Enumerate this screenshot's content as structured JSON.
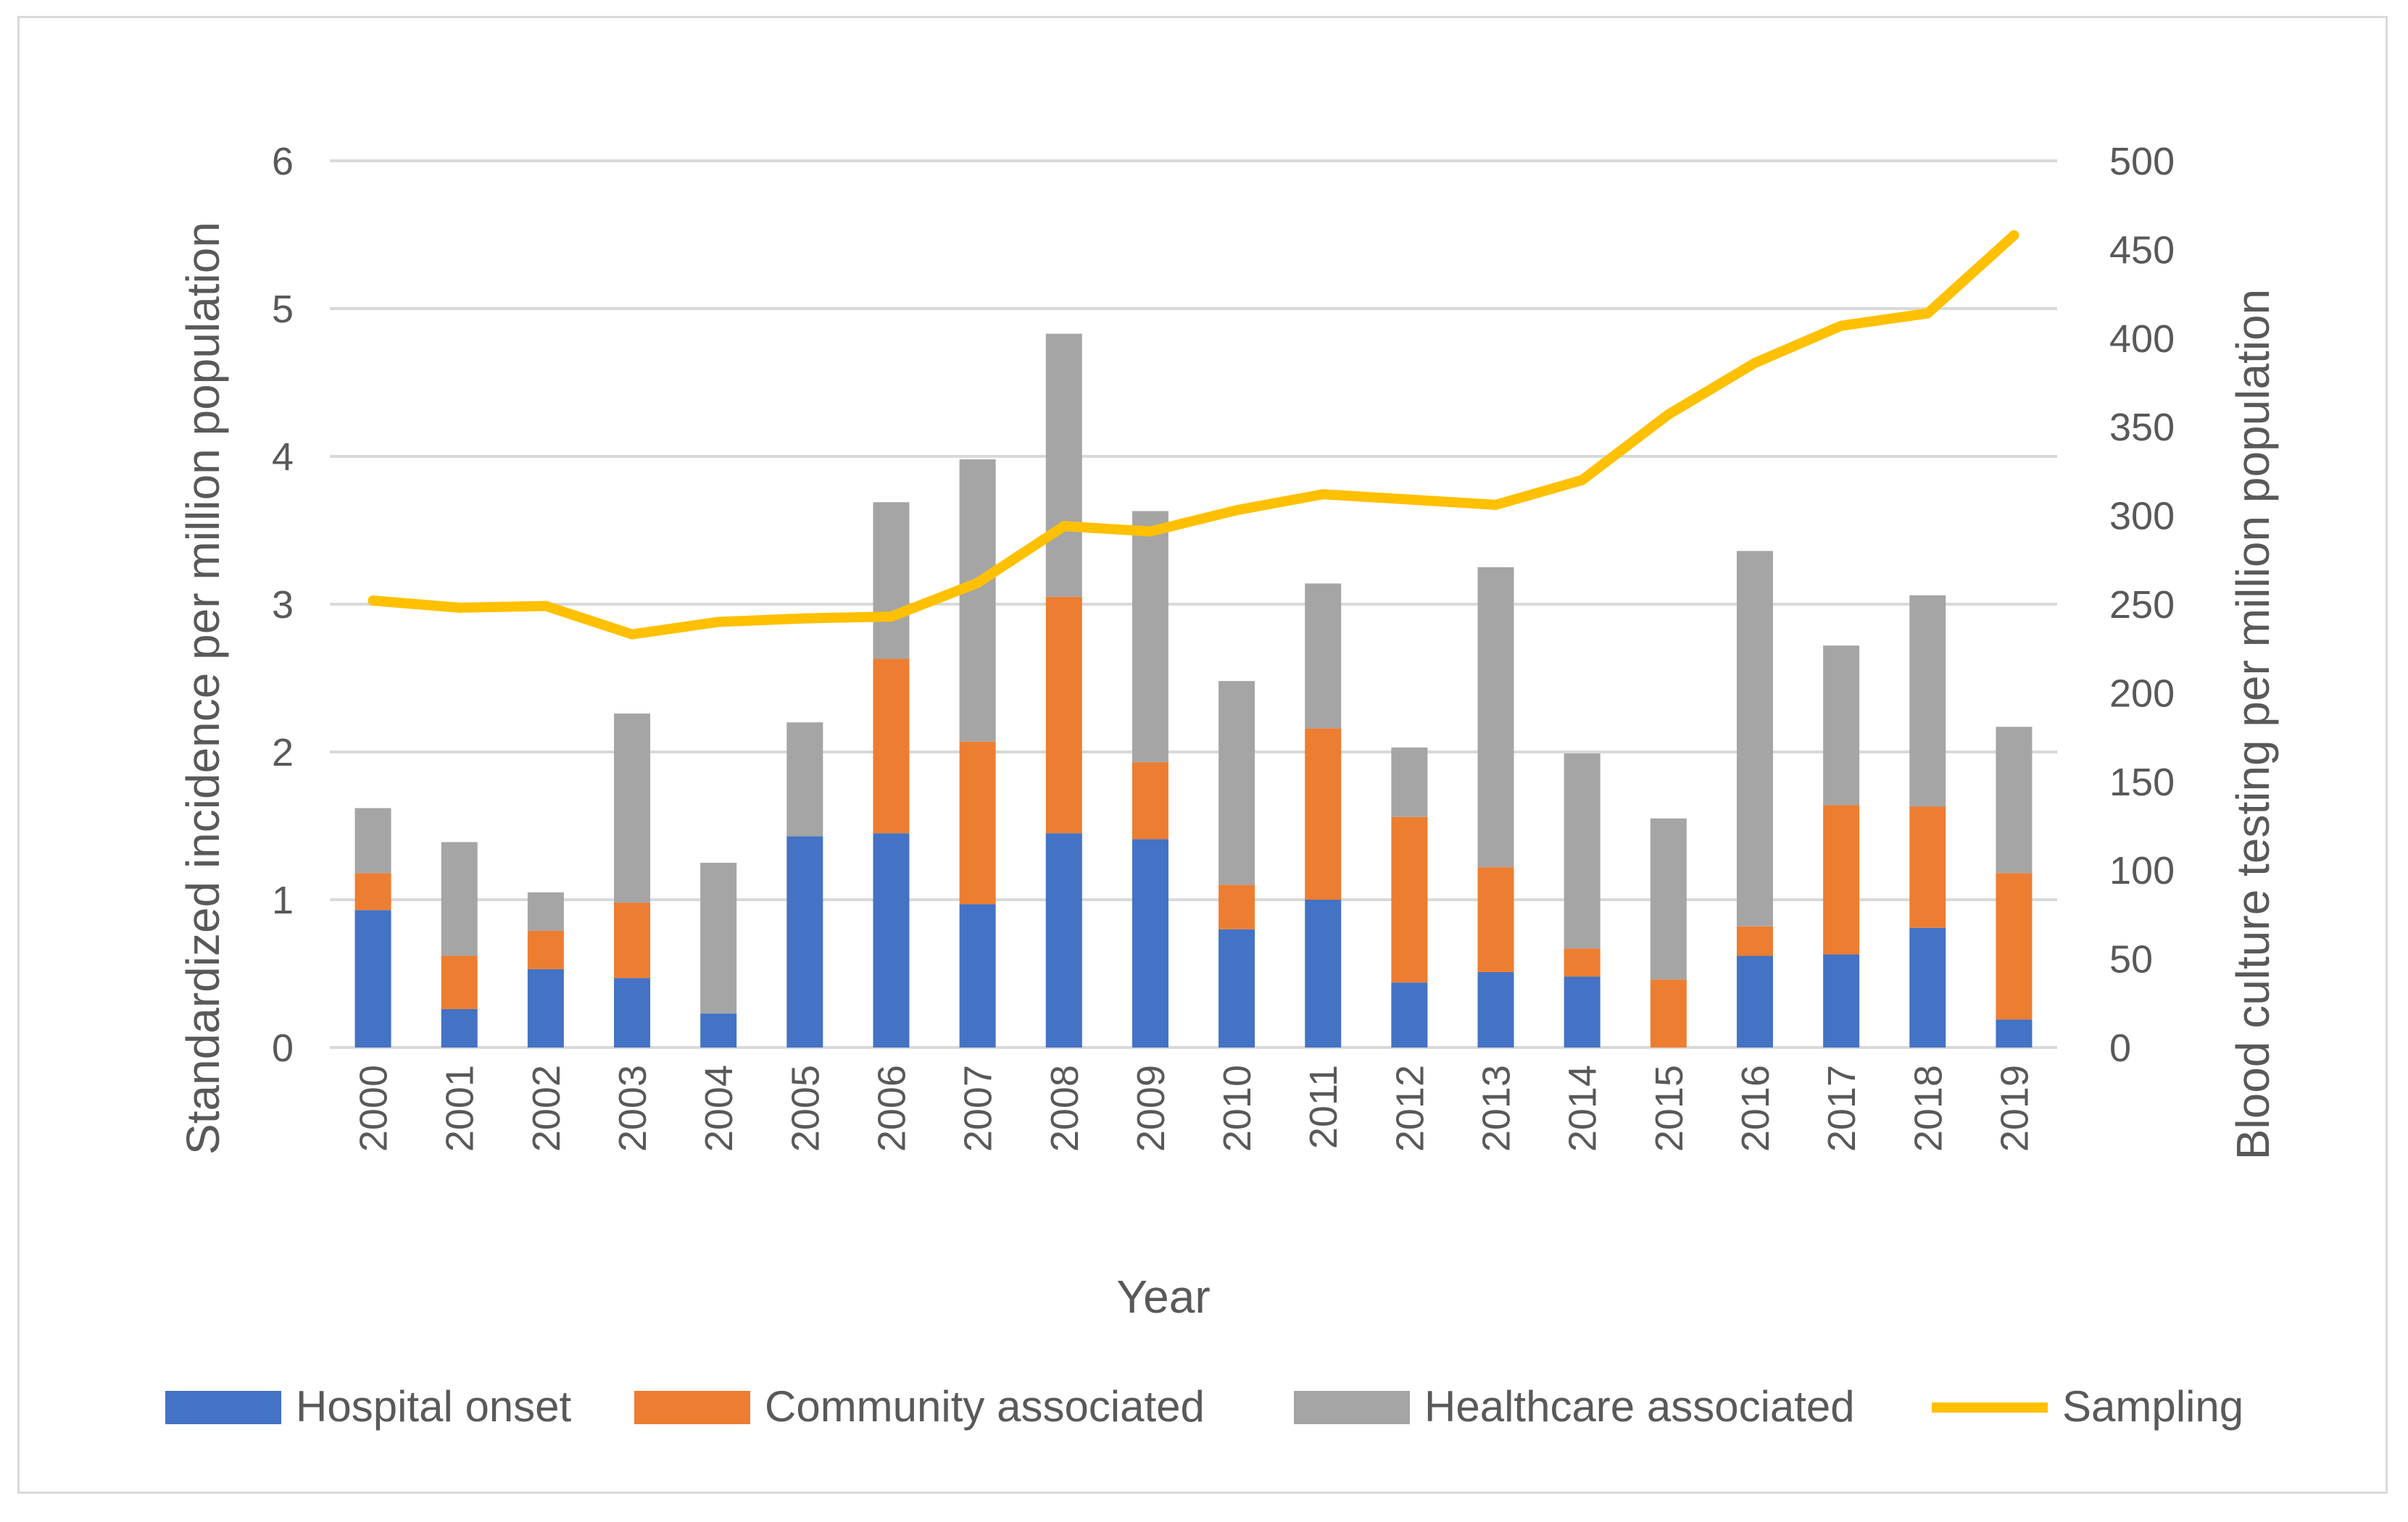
{
  "chart_data": {
    "type": "bar",
    "stacked": true,
    "title": "",
    "xlabel": "Year",
    "ylabel": "Standardized incidence per million population",
    "y2label": "Blood culture testing per million population",
    "ylim": [
      0,
      6
    ],
    "y2lim": [
      0,
      500
    ],
    "yticks": [
      "0",
      "1",
      "2",
      "3",
      "4",
      "5",
      "6"
    ],
    "y2ticks": [
      "0",
      "50",
      "100",
      "150",
      "200",
      "250",
      "300",
      "350",
      "400",
      "450",
      "500"
    ],
    "categories": [
      "2000",
      "2001",
      "2002",
      "2003",
      "2004",
      "2005",
      "2006",
      "2007",
      "2008",
      "2009",
      "2010",
      "2011",
      "2012",
      "2013",
      "2014",
      "2015",
      "2016",
      "2017",
      "2018",
      "2019"
    ],
    "series": [
      {
        "name": "Hospital onset",
        "axis": "left",
        "kind": "bar",
        "color": "#4472c4",
        "values": [
          0.93,
          0.26,
          0.53,
          0.47,
          0.23,
          1.43,
          1.45,
          0.97,
          1.45,
          1.41,
          0.8,
          1.0,
          0.44,
          0.51,
          0.48,
          0.0,
          0.62,
          0.63,
          0.81,
          0.19
        ]
      },
      {
        "name": "Community associated",
        "axis": "left",
        "kind": "bar",
        "color": "#ed7d31",
        "values": [
          0.25,
          0.36,
          0.26,
          0.51,
          0.0,
          0.0,
          1.18,
          1.1,
          1.6,
          0.52,
          0.3,
          1.16,
          1.12,
          0.71,
          0.19,
          0.46,
          0.2,
          1.01,
          0.82,
          0.99
        ]
      },
      {
        "name": "Healthcare associated",
        "axis": "left",
        "kind": "bar",
        "color": "#a5a5a5",
        "values": [
          0.44,
          0.77,
          0.26,
          1.28,
          1.02,
          0.77,
          1.06,
          1.91,
          1.78,
          1.7,
          1.38,
          0.98,
          0.47,
          2.03,
          1.32,
          1.09,
          2.54,
          1.08,
          1.43,
          0.99
        ]
      },
      {
        "name": "Sampling",
        "axis": "right",
        "kind": "line",
        "color": "#ffc000",
        "values": [
          252,
          248,
          249,
          233,
          240,
          242,
          243,
          262,
          294,
          291,
          303,
          312,
          309,
          306,
          320,
          357,
          386,
          407,
          414,
          458
        ]
      }
    ],
    "legend_position": "bottom",
    "grid": true
  }
}
